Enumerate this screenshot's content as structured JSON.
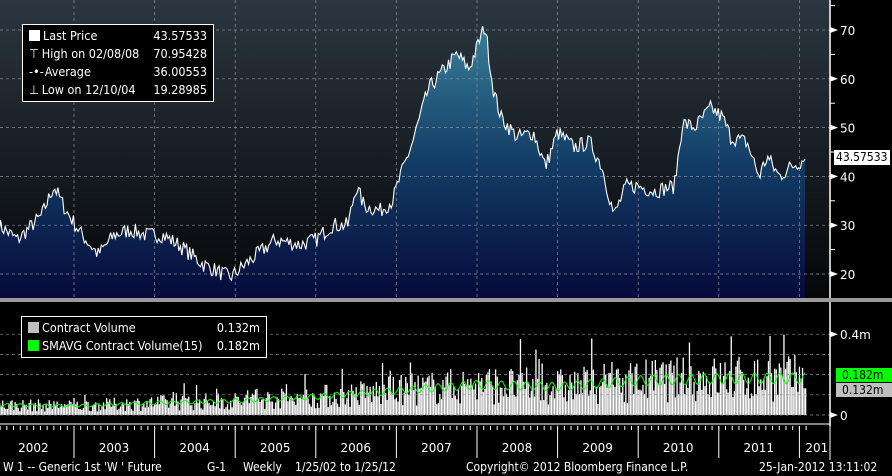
{
  "legend_price": [
    {
      "icon": "square-icon",
      "label": "Last Price",
      "value": "43.57533"
    },
    {
      "icon": "high-marker-icon",
      "label": "High on 02/08/08",
      "value": "70.95428"
    },
    {
      "icon": "average-line-icon",
      "label": "Average",
      "value": "36.00553"
    },
    {
      "icon": "low-marker-icon",
      "label": "Low on 12/10/04",
      "value": "19.28985"
    }
  ],
  "legend_volume": [
    {
      "label": "Contract Volume",
      "value": "0.132m",
      "color": "#c0c0c0"
    },
    {
      "label": "SMAVG Contract Volume(15)",
      "value": "0.182m",
      "color": "#00ff00"
    }
  ],
  "last_price_tag": "43.57533",
  "volume_tags": {
    "sma": "0.182m",
    "volume": "0.132m"
  },
  "footer": {
    "ticker": "W 1 -- Generic 1st 'W ' Future",
    "page": "G-1",
    "period": "Weekly",
    "range": "1/25/02 to 1/25/12",
    "copyright": "Copyright© 2012 Bloomberg Finance L.P.",
    "timestamp": "25-Jan-2012 13:11:02"
  },
  "chart_data": {
    "type": "area",
    "title": "Generic 1st 'W ' Future",
    "x_years": [
      "2002",
      "2003",
      "2004",
      "2005",
      "2006",
      "2007",
      "2008",
      "2009",
      "2010",
      "2011",
      "201"
    ],
    "price_axis": {
      "ticks": [
        "20",
        "30",
        "40",
        "50",
        "60",
        "70"
      ],
      "ylim": [
        15,
        73
      ]
    },
    "volume_axis": {
      "ticks": [
        "0",
        "0.4m"
      ],
      "ylim": [
        0,
        0.45
      ]
    },
    "price_keypoints": [
      [
        2002.07,
        30
      ],
      [
        2002.3,
        27
      ],
      [
        2002.6,
        32
      ],
      [
        2002.75,
        38
      ],
      [
        2002.9,
        33
      ],
      [
        2003.1,
        28
      ],
      [
        2003.3,
        24
      ],
      [
        2003.5,
        28
      ],
      [
        2003.7,
        29
      ],
      [
        2003.9,
        28
      ],
      [
        2004.1,
        28
      ],
      [
        2004.3,
        26
      ],
      [
        2004.6,
        22
      ],
      [
        2004.94,
        19.3
      ],
      [
        2005.2,
        23
      ],
      [
        2005.5,
        27
      ],
      [
        2005.8,
        26
      ],
      [
        2006.0,
        27
      ],
      [
        2006.2,
        30
      ],
      [
        2006.4,
        30
      ],
      [
        2006.5,
        38
      ],
      [
        2006.6,
        34
      ],
      [
        2006.8,
        33
      ],
      [
        2006.95,
        35
      ],
      [
        2007.05,
        40
      ],
      [
        2007.2,
        47
      ],
      [
        2007.4,
        58
      ],
      [
        2007.6,
        62
      ],
      [
        2007.75,
        65
      ],
      [
        2007.9,
        62
      ],
      [
        2008.1,
        70.9
      ],
      [
        2008.2,
        58
      ],
      [
        2008.3,
        52
      ],
      [
        2008.5,
        48
      ],
      [
        2008.7,
        49
      ],
      [
        2008.85,
        42
      ],
      [
        2009.0,
        49
      ],
      [
        2009.2,
        46
      ],
      [
        2009.4,
        47
      ],
      [
        2009.55,
        42
      ],
      [
        2009.7,
        32
      ],
      [
        2009.85,
        38
      ],
      [
        2010.0,
        38
      ],
      [
        2010.2,
        37
      ],
      [
        2010.45,
        38
      ],
      [
        2010.55,
        51
      ],
      [
        2010.7,
        50
      ],
      [
        2010.9,
        54
      ],
      [
        2011.05,
        52
      ],
      [
        2011.15,
        48
      ],
      [
        2011.35,
        47
      ],
      [
        2011.5,
        40
      ],
      [
        2011.6,
        44
      ],
      [
        2011.75,
        40
      ],
      [
        2011.9,
        42
      ],
      [
        2012.07,
        43.58
      ]
    ],
    "volume_sma_keypoints": [
      [
        2002.07,
        0.05
      ],
      [
        2003,
        0.045
      ],
      [
        2004,
        0.06
      ],
      [
        2005,
        0.07
      ],
      [
        2006,
        0.09
      ],
      [
        2007,
        0.12
      ],
      [
        2008,
        0.15
      ],
      [
        2009,
        0.14
      ],
      [
        2010,
        0.17
      ],
      [
        2011,
        0.18
      ],
      [
        2012.07,
        0.182
      ]
    ],
    "last_volume": 0.132
  }
}
